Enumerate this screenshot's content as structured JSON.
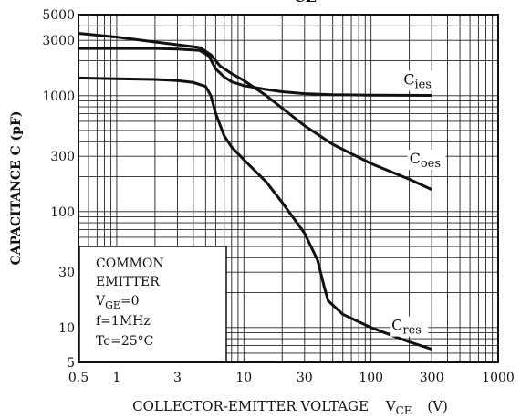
{
  "chart_data": {
    "type": "line",
    "x_scale": "log",
    "y_scale": "log",
    "xlim": [
      0.5,
      1000
    ],
    "ylim": [
      5,
      5000
    ],
    "grid": true,
    "ylabel": "CAPACITANCE  C  (pF)",
    "xlabel_main": "COLLECTOR-EMITTER VOLTAGE",
    "xlabel_sym": "V",
    "xlabel_sub": "CE",
    "xlabel_unit": "(V)",
    "top_label_sub": "CE",
    "x_ticks": [
      {
        "v": 0.5,
        "label": "0.5"
      },
      {
        "v": 1,
        "label": "1"
      },
      {
        "v": 3,
        "label": "3"
      },
      {
        "v": 10,
        "label": "10"
      },
      {
        "v": 30,
        "label": "30"
      },
      {
        "v": 100,
        "label": "100"
      },
      {
        "v": 300,
        "label": "300"
      },
      {
        "v": 1000,
        "label": "1000"
      }
    ],
    "y_ticks": [
      {
        "v": 5,
        "label": "5"
      },
      {
        "v": 10,
        "label": "10"
      },
      {
        "v": 30,
        "label": "30"
      },
      {
        "v": 100,
        "label": "100"
      },
      {
        "v": 300,
        "label": "300"
      },
      {
        "v": 1000,
        "label": "1000"
      },
      {
        "v": 3000,
        "label": "3000"
      },
      {
        "v": 5000,
        "label": "5000"
      }
    ],
    "series": [
      {
        "name": "Cies",
        "label_main": "C",
        "label_sub": "ies",
        "x": [
          0.5,
          1,
          2,
          3,
          4.5,
          5.3,
          6,
          7,
          8,
          10,
          15,
          20,
          30,
          50,
          100,
          300
        ],
        "y": [
          2550,
          2550,
          2550,
          2520,
          2450,
          2200,
          1700,
          1450,
          1320,
          1220,
          1130,
          1080,
          1040,
          1020,
          1010,
          1005
        ]
      },
      {
        "name": "Coes",
        "label_main": "C",
        "label_sub": "oes",
        "x": [
          0.5,
          1,
          2,
          3,
          4.5,
          5.5,
          6.5,
          8,
          10,
          15,
          20,
          30,
          50,
          100,
          200,
          300
        ],
        "y": [
          3450,
          3200,
          2900,
          2750,
          2600,
          2250,
          1800,
          1550,
          1350,
          1000,
          780,
          550,
          380,
          260,
          190,
          155
        ]
      },
      {
        "name": "Cres",
        "label_main": "C",
        "label_sub": "res",
        "x": [
          0.5,
          1,
          2,
          3,
          4,
          5,
          5.5,
          6,
          7,
          8,
          10,
          15,
          20,
          30,
          38,
          43,
          46,
          60,
          100,
          200,
          300
        ],
        "y": [
          1420,
          1400,
          1380,
          1350,
          1300,
          1200,
          1000,
          700,
          450,
          360,
          280,
          180,
          120,
          65,
          38,
          22,
          17,
          13,
          10,
          7.5,
          6.5
        ]
      }
    ],
    "annotation_lines": [
      "COMMON",
      "EMITTER",
      "V",
      "GE",
      "=0",
      "f=1MHz",
      "Tc=25°C"
    ]
  }
}
